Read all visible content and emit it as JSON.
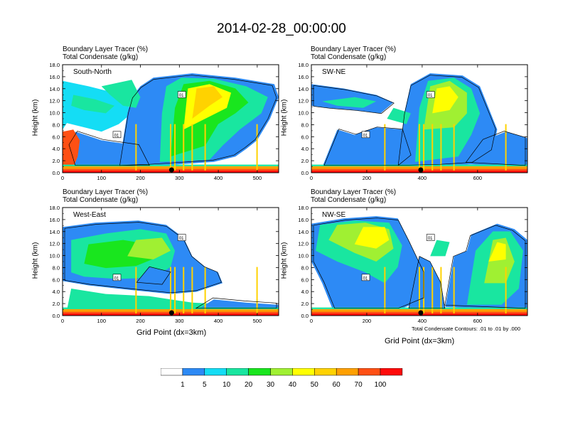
{
  "title": "2014-02-28_00:00:00",
  "header_line1": "Boundary Layer Tracer   (%)",
  "header_line2": "Total Condensate   (g/kg)",
  "y_axis_label": "Height (km)",
  "x_axis_label": "Grid Point (dx=3km)",
  "contour_note": "Total Condensate Contours: .01 to .01 by .000",
  "contour_label": "01",
  "colorbar": {
    "levels": [
      1,
      5,
      10,
      20,
      30,
      40,
      50,
      60,
      70,
      100
    ],
    "colors": [
      "#ffffff",
      "#2d8af5",
      "#14ddf5",
      "#19e6a0",
      "#19e61e",
      "#a0f032",
      "#ffff00",
      "#ffd200",
      "#ffa000",
      "#ff5014",
      "#ff0a0a"
    ]
  },
  "chart_data": [
    {
      "type": "heatmap",
      "panel": "South-North",
      "x_ticks": [
        0,
        100,
        200,
        300,
        400,
        500
      ],
      "xlim": [
        0,
        555
      ],
      "y_ticks": [
        "0.0",
        "2.0",
        "4.0",
        "6.0",
        "8.0",
        "10.0",
        "12.0",
        "14.0",
        "16.0",
        "18.0"
      ],
      "ylim": [
        0,
        18
      ],
      "marker_x": 280
    },
    {
      "type": "heatmap",
      "panel": "SW-NE",
      "x_ticks": [
        0,
        200,
        400,
        600
      ],
      "xlim": [
        0,
        780
      ],
      "y_ticks": [
        "0.0",
        "2.0",
        "4.0",
        "6.0",
        "8.0",
        "10.0",
        "12.0",
        "14.0",
        "16.0",
        "18.0"
      ],
      "ylim": [
        0,
        18
      ],
      "marker_x": 395
    },
    {
      "type": "heatmap",
      "panel": "West-East",
      "x_ticks": [
        0,
        100,
        200,
        300,
        400,
        500
      ],
      "xlim": [
        0,
        555
      ],
      "y_ticks": [
        "0.0",
        "2.0",
        "4.0",
        "6.0",
        "8.0",
        "10.0",
        "12.0",
        "14.0",
        "16.0",
        "18.0"
      ],
      "ylim": [
        0,
        18
      ],
      "marker_x": 280
    },
    {
      "type": "heatmap",
      "panel": "NW-SE",
      "x_ticks": [
        0,
        200,
        400,
        600
      ],
      "xlim": [
        0,
        780
      ],
      "y_ticks": [
        "0.0",
        "2.0",
        "4.0",
        "6.0",
        "8.0",
        "10.0",
        "12.0",
        "14.0",
        "16.0",
        "18.0"
      ],
      "ylim": [
        0,
        18
      ],
      "marker_x": 395
    }
  ]
}
